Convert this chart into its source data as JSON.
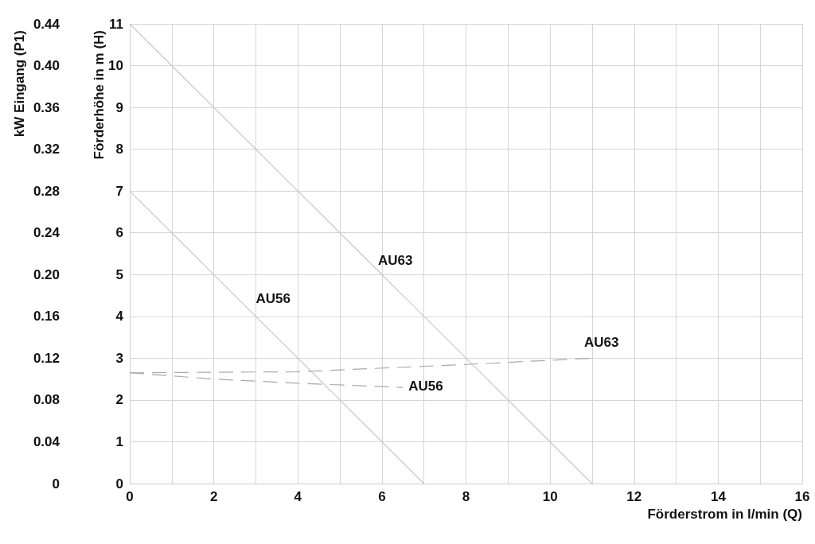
{
  "chart_data": {
    "type": "line",
    "xlabel": "Förderstrom in l/min (Q)",
    "ylabel": "Förderhöhe in m (H)",
    "y2label": "kW Eingang (P1)",
    "xlim": [
      0,
      16
    ],
    "xticks": [
      0,
      {
        "value": 1,
        "label": null
      },
      2,
      {
        "value": 3,
        "label": null
      },
      4,
      {
        "value": 5,
        "label": null
      },
      6,
      {
        "value": 7,
        "label": null
      },
      8,
      {
        "value": 9,
        "label": null
      },
      10,
      {
        "value": 11,
        "label": null
      },
      12,
      {
        "value": 13,
        "label": null
      },
      14,
      {
        "value": 15,
        "label": null
      },
      16
    ],
    "ylim": [
      0,
      11
    ],
    "yticks": [
      0,
      1,
      2,
      3,
      4,
      5,
      6,
      7,
      8,
      9,
      10,
      11
    ],
    "y2lim": [
      0,
      0.44
    ],
    "y2ticks": [
      0,
      0.04,
      0.08,
      0.12,
      0.16,
      {
        "value": 0.2,
        "label": "0.20"
      },
      0.24,
      0.28,
      0.32,
      0.36,
      {
        "value": 0.4,
        "label": "0.40"
      },
      0.44
    ],
    "grid": true,
    "legend": false,
    "marker": "none",
    "series": [
      {
        "name": "AU63",
        "color": "#c8c8c8",
        "line_style": "solid",
        "x": [
          0,
          6,
          11
        ],
        "values": [
          11,
          5,
          0
        ]
      },
      {
        "name": "AU56",
        "color": "#c8c8c8",
        "line_style": "solid",
        "x": [
          0,
          3,
          7
        ],
        "values": [
          7,
          4,
          0
        ]
      },
      {
        "name": "AU63",
        "color": "#aaaaaa",
        "line_style": "dashed",
        "axis": "y2",
        "x": [
          0,
          4,
          8,
          11
        ],
        "values": [
          0.106,
          0.107,
          0.114,
          0.12
        ]
      },
      {
        "name": "AU56",
        "color": "#aaaaaa",
        "line_style": "dashed",
        "axis": "y2",
        "x": [
          0,
          2,
          4,
          6.5
        ],
        "values": [
          0.106,
          0.1,
          0.096,
          0.092
        ]
      }
    ]
  }
}
